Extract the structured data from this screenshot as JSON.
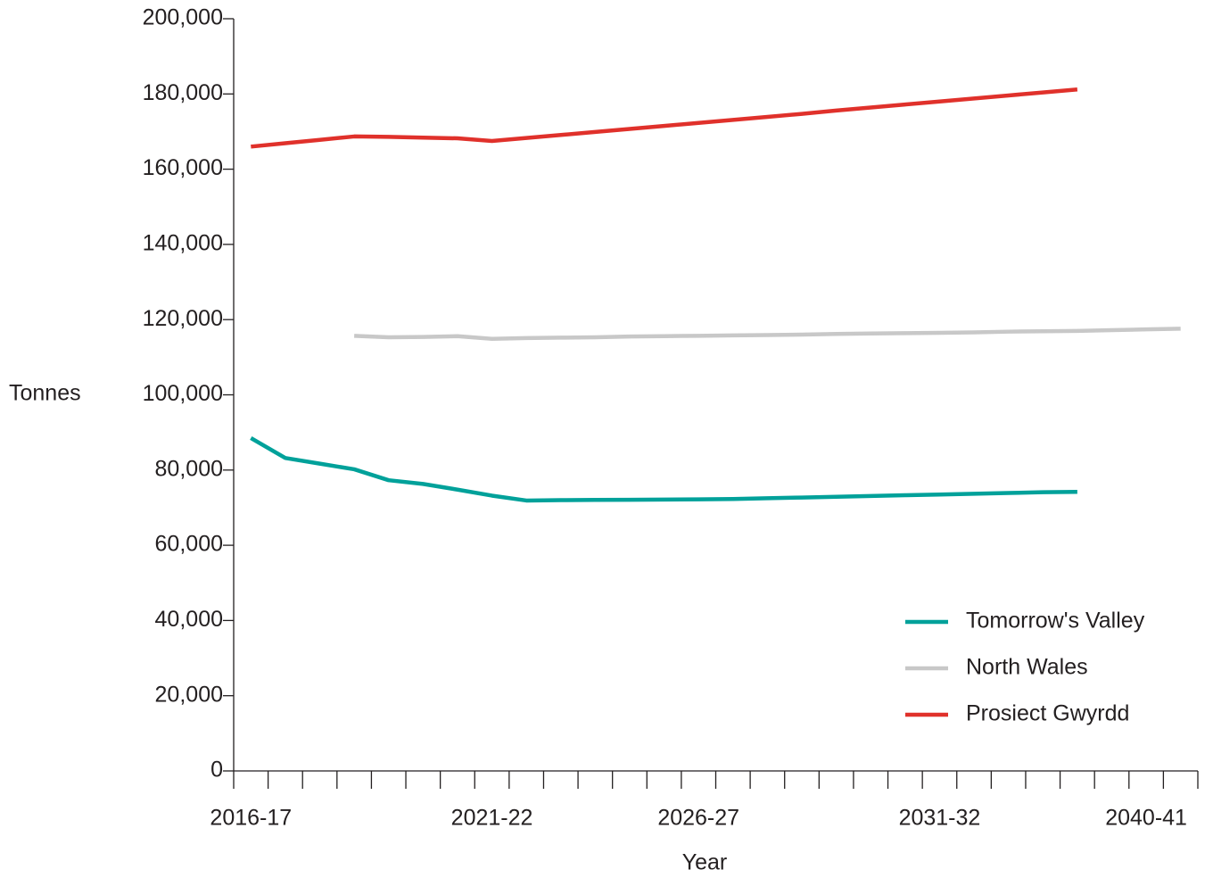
{
  "chart_data": {
    "type": "line",
    "x_label": "Year",
    "y_label": "Tonnes",
    "categories": [
      "2016-17",
      null,
      null,
      null,
      null,
      null,
      null,
      "2021-22",
      null,
      null,
      null,
      null,
      null,
      "2026-27",
      null,
      null,
      null,
      null,
      null,
      null,
      "2031-32",
      null,
      null,
      null,
      null,
      null,
      "2040-41",
      null
    ],
    "series": [
      {
        "name": "Tomorrow's Valley",
        "color": "#00a19a",
        "values": [
          88500,
          83200,
          81700,
          80200,
          77300,
          76300,
          74800,
          73200,
          71900,
          72000,
          72050,
          72100,
          72150,
          72200,
          72300,
          72500,
          72700,
          72900,
          73100,
          73300,
          73500,
          73700,
          73900,
          74100,
          74200,
          null,
          null,
          null
        ]
      },
      {
        "name": "North Wales",
        "color": "#c8c8c8",
        "values": [
          null,
          null,
          null,
          115700,
          115300,
          115400,
          115600,
          114900,
          115100,
          115200,
          115300,
          115500,
          115600,
          115700,
          115800,
          115900,
          116000,
          116200,
          116300,
          116400,
          116500,
          116600,
          116800,
          116900,
          117000,
          117200,
          117400,
          117600
        ]
      },
      {
        "name": "Prosiect Gwyrdd",
        "color": "#e0312b",
        "values": [
          166000,
          166900,
          167800,
          168700,
          168600,
          168400,
          168200,
          167500,
          168300,
          169100,
          169900,
          170700,
          171500,
          172300,
          173100,
          173900,
          174700,
          175600,
          176400,
          177200,
          178000,
          178800,
          179600,
          180400,
          181200,
          null,
          null,
          null
        ]
      }
    ],
    "ylim": [
      0,
      200000
    ],
    "yticks": [
      0,
      {
        "value": 20000,
        "label": "20,000"
      },
      {
        "value": 40000,
        "label": "40,000"
      },
      {
        "value": 60000,
        "label": "60,000"
      },
      {
        "value": 80000,
        "label": "80,000"
      },
      {
        "value": 100000,
        "label": "100,000"
      },
      {
        "value": 120000,
        "label": "120,000"
      },
      {
        "value": 140000,
        "label": "140,000"
      },
      {
        "value": 160000,
        "label": "160,000"
      },
      {
        "value": 180000,
        "label": "180,000"
      },
      {
        "value": 200000,
        "label": "200,000"
      }
    ],
    "grid": false,
    "legend": "lower right"
  }
}
